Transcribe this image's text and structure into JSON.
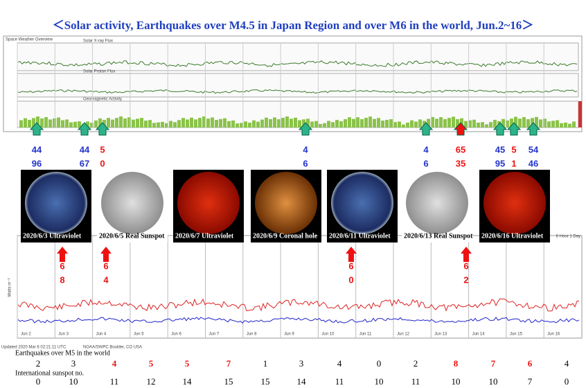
{
  "title": "＜Solar activity, Earthquakes over M4.5 in Japan Region and over M6 in the world,   Jun.2~16＞",
  "top_panel": {
    "header": "Space Weather Overview",
    "strips": [
      "Solar X-ray Flux",
      "Solar Proton Flux",
      "Geomagnetic Activity"
    ]
  },
  "top_markers": [
    [
      "44",
      "96"
    ],
    [
      "44",
      "67"
    ],
    [
      "5",
      "0"
    ],
    [
      "4",
      "6"
    ],
    [
      "4",
      "6"
    ],
    [
      "65",
      "35"
    ],
    [
      "45",
      "95"
    ],
    [
      "5",
      "1"
    ],
    [
      "54",
      "46"
    ]
  ],
  "images": [
    "2020/6/3 Ultraviolet",
    "2020/6/5 Real Sunspot",
    "2020/6/7 Ultraviolet",
    "2020/6/9 Coronal hole",
    "2020/6/11 Ultraviolet",
    "2020/6/13 Real Sunspot",
    "2020/6/16 Ultraviolet"
  ],
  "xray_panel": {
    "axis_label": "Watts m⁻²",
    "range_label": "6 Hour 1 Day",
    "days": [
      "Jun 2",
      "Jun 3",
      "Jun 4",
      "Jun 5",
      "Jun 6",
      "Jun 7",
      "Jun 8",
      "Jun 9",
      "Jun 10",
      "Jun 11",
      "Jun 12",
      "Jun 13",
      "Jun 14",
      "Jun 15",
      "Jun 16"
    ],
    "footer_left": "Updated 2020 Mar  6 02:21:11 UTC",
    "footer_mid": "NOAA/SWPC Boulder, CO USA"
  },
  "bottom_markers": [
    [
      "6",
      "8"
    ],
    [
      "6",
      "4"
    ],
    [
      "6",
      "0"
    ],
    [
      "6",
      "2"
    ]
  ],
  "table": {
    "row1_label": "Earthquakes over M5 in the world",
    "row1": [
      "2",
      "3",
      "4",
      "5",
      "5",
      "7",
      "1",
      "3",
      "4",
      "0",
      "2",
      "8",
      "7",
      "6",
      "4"
    ],
    "row2_label": "International sunspot no.",
    "row2": [
      "0",
      "10",
      "11",
      "12",
      "14",
      "15",
      "15",
      "14",
      "11",
      "10",
      "11",
      "10",
      "10",
      "7",
      "0"
    ]
  }
}
